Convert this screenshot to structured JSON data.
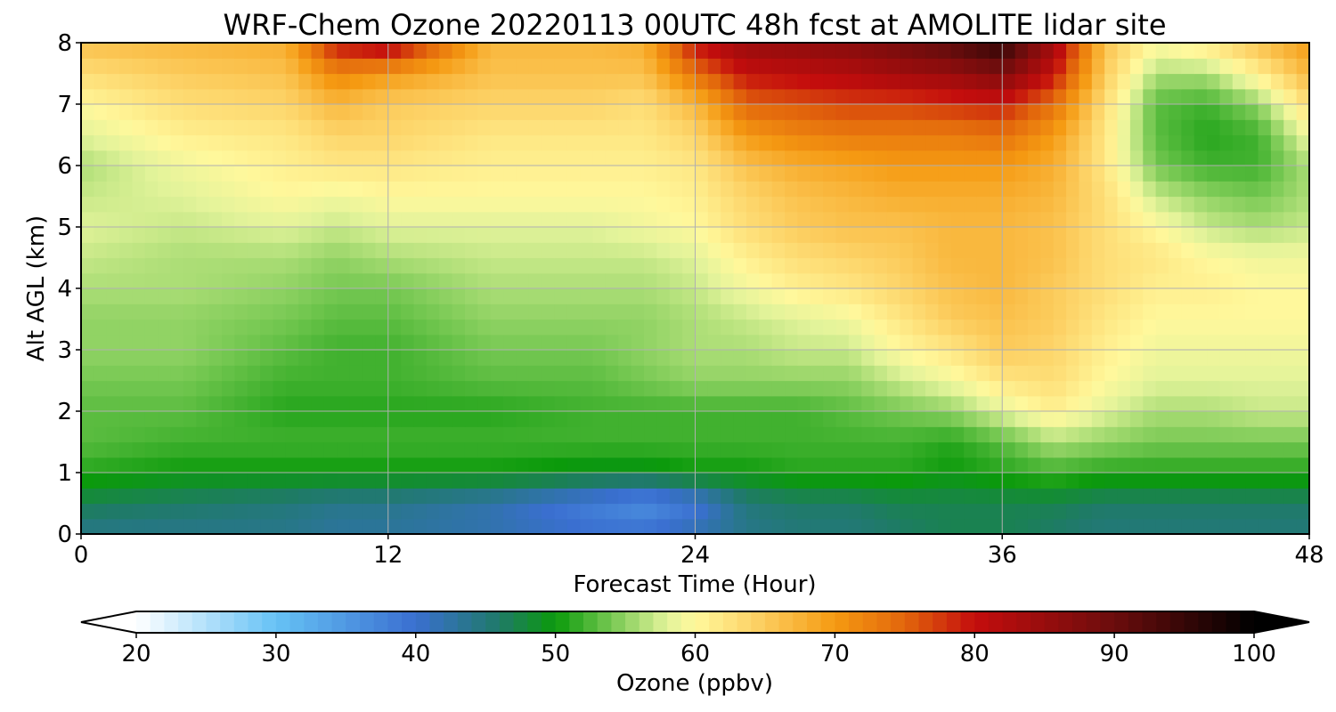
{
  "chart_data": {
    "type": "heatmap",
    "title": "WRF-Chem Ozone  20220113 00UTC 48h fcst at AMOLITE lidar site",
    "xlabel": "Forecast Time (Hour)",
    "ylabel": "Alt AGL (km)",
    "xlim": [
      0,
      48
    ],
    "ylim": [
      0,
      8
    ],
    "x_ticks": [
      "0",
      "12",
      "24",
      "36",
      "48"
    ],
    "y_ticks": [
      "0",
      "1",
      "2",
      "3",
      "4",
      "5",
      "6",
      "7",
      "8"
    ],
    "grid": true,
    "x": [
      0,
      4,
      8,
      10,
      12,
      16,
      20,
      22,
      24,
      26,
      28,
      30,
      32,
      34,
      36,
      38,
      40,
      42,
      44,
      46,
      48
    ],
    "y": [
      0,
      0.5,
      1,
      1.5,
      2,
      2.5,
      3,
      3.5,
      4,
      4.5,
      5,
      5.5,
      6,
      6.5,
      7,
      7.5,
      8
    ],
    "z_units": "ppbv",
    "z": [
      [
        44,
        44,
        44,
        43,
        43,
        42,
        40,
        40,
        42,
        44,
        45,
        45,
        46,
        47,
        47,
        46,
        45,
        45,
        45,
        45,
        45
      ],
      [
        47,
        46,
        45,
        44,
        44,
        42,
        38,
        36,
        39,
        45,
        46,
        46,
        47,
        47,
        47,
        47,
        46,
        46,
        46,
        46,
        46
      ],
      [
        51,
        50,
        50,
        50,
        50,
        50,
        49,
        49,
        50,
        50,
        51,
        51,
        51,
        50,
        51,
        52,
        51,
        51,
        51,
        51,
        51
      ],
      [
        53,
        52,
        52,
        52,
        52,
        52,
        52,
        52,
        52,
        52,
        52,
        52,
        52,
        51,
        53,
        56,
        55,
        54,
        54,
        54,
        54
      ],
      [
        53,
        53,
        51,
        51,
        51,
        51,
        52,
        52,
        52,
        52,
        52,
        53,
        54,
        55,
        58,
        61,
        58,
        56,
        56,
        57,
        57
      ],
      [
        54,
        54,
        52,
        52,
        52,
        53,
        53,
        54,
        55,
        55,
        55,
        55,
        57,
        59,
        62,
        63,
        60,
        58,
        58,
        58,
        58
      ],
      [
        55,
        55,
        53,
        52,
        52,
        54,
        54,
        55,
        56,
        56,
        57,
        57,
        60,
        62,
        65,
        64,
        61,
        59,
        59,
        59,
        59
      ],
      [
        55,
        55,
        54,
        53,
        53,
        55,
        55,
        55,
        56,
        57,
        58,
        59,
        62,
        65,
        66,
        65,
        62,
        60,
        60,
        60,
        60
      ],
      [
        56,
        56,
        55,
        54,
        54,
        56,
        56,
        56,
        57,
        59,
        61,
        62,
        64,
        66,
        67,
        65,
        63,
        61,
        61,
        60,
        60
      ],
      [
        57,
        56,
        56,
        55,
        56,
        57,
        57,
        57,
        58,
        61,
        63,
        64,
        65,
        67,
        67,
        66,
        63,
        62,
        60,
        59,
        59
      ],
      [
        58,
        57,
        58,
        57,
        58,
        58,
        58,
        59,
        60,
        63,
        65,
        66,
        66,
        67,
        67,
        66,
        63,
        60,
        57,
        56,
        57
      ],
      [
        57,
        58,
        60,
        59,
        60,
        60,
        60,
        60,
        61,
        64,
        66,
        67,
        68,
        68,
        68,
        67,
        63,
        57,
        55,
        54,
        56
      ],
      [
        56,
        59,
        61,
        62,
        62,
        61,
        61,
        61,
        62,
        66,
        68,
        69,
        70,
        70,
        70,
        68,
        62,
        54,
        52,
        52,
        56
      ],
      [
        58,
        61,
        62,
        64,
        64,
        62,
        62,
        62,
        64,
        70,
        72,
        73,
        73,
        73,
        74,
        70,
        62,
        53,
        51,
        52,
        59
      ],
      [
        60,
        63,
        64,
        67,
        65,
        64,
        64,
        63,
        67,
        75,
        76,
        77,
        77,
        78,
        79,
        74,
        63,
        53,
        52,
        55,
        63
      ],
      [
        63,
        65,
        66,
        72,
        70,
        66,
        66,
        66,
        74,
        80,
        81,
        82,
        84,
        85,
        88,
        80,
        65,
        56,
        56,
        61,
        67
      ],
      [
        66,
        67,
        68,
        80,
        83,
        67,
        67,
        68,
        80,
        85,
        86,
        87,
        89,
        92,
        96,
        84,
        66,
        60,
        62,
        66,
        70
      ]
    ],
    "colorbar": {
      "label": "Ozone  (ppbv)",
      "min": 20,
      "max": 100,
      "ticks": [
        "20",
        "30",
        "40",
        "50",
        "60",
        "70",
        "80",
        "90",
        "100"
      ],
      "extend": "both",
      "stops": [
        {
          "v": 20,
          "c": "#ffffff"
        },
        {
          "v": 30,
          "c": "#66c2f5"
        },
        {
          "v": 40,
          "c": "#3a6fd0"
        },
        {
          "v": 46,
          "c": "#1f7a68"
        },
        {
          "v": 50,
          "c": "#0b9a0b"
        },
        {
          "v": 54,
          "c": "#76c852"
        },
        {
          "v": 58,
          "c": "#e2f39a"
        },
        {
          "v": 60,
          "c": "#fff89c"
        },
        {
          "v": 64,
          "c": "#fdd56a"
        },
        {
          "v": 70,
          "c": "#f59a12"
        },
        {
          "v": 75,
          "c": "#e2660c"
        },
        {
          "v": 80,
          "c": "#c40d0d"
        },
        {
          "v": 90,
          "c": "#6b0d0d"
        },
        {
          "v": 100,
          "c": "#000000"
        }
      ]
    }
  }
}
